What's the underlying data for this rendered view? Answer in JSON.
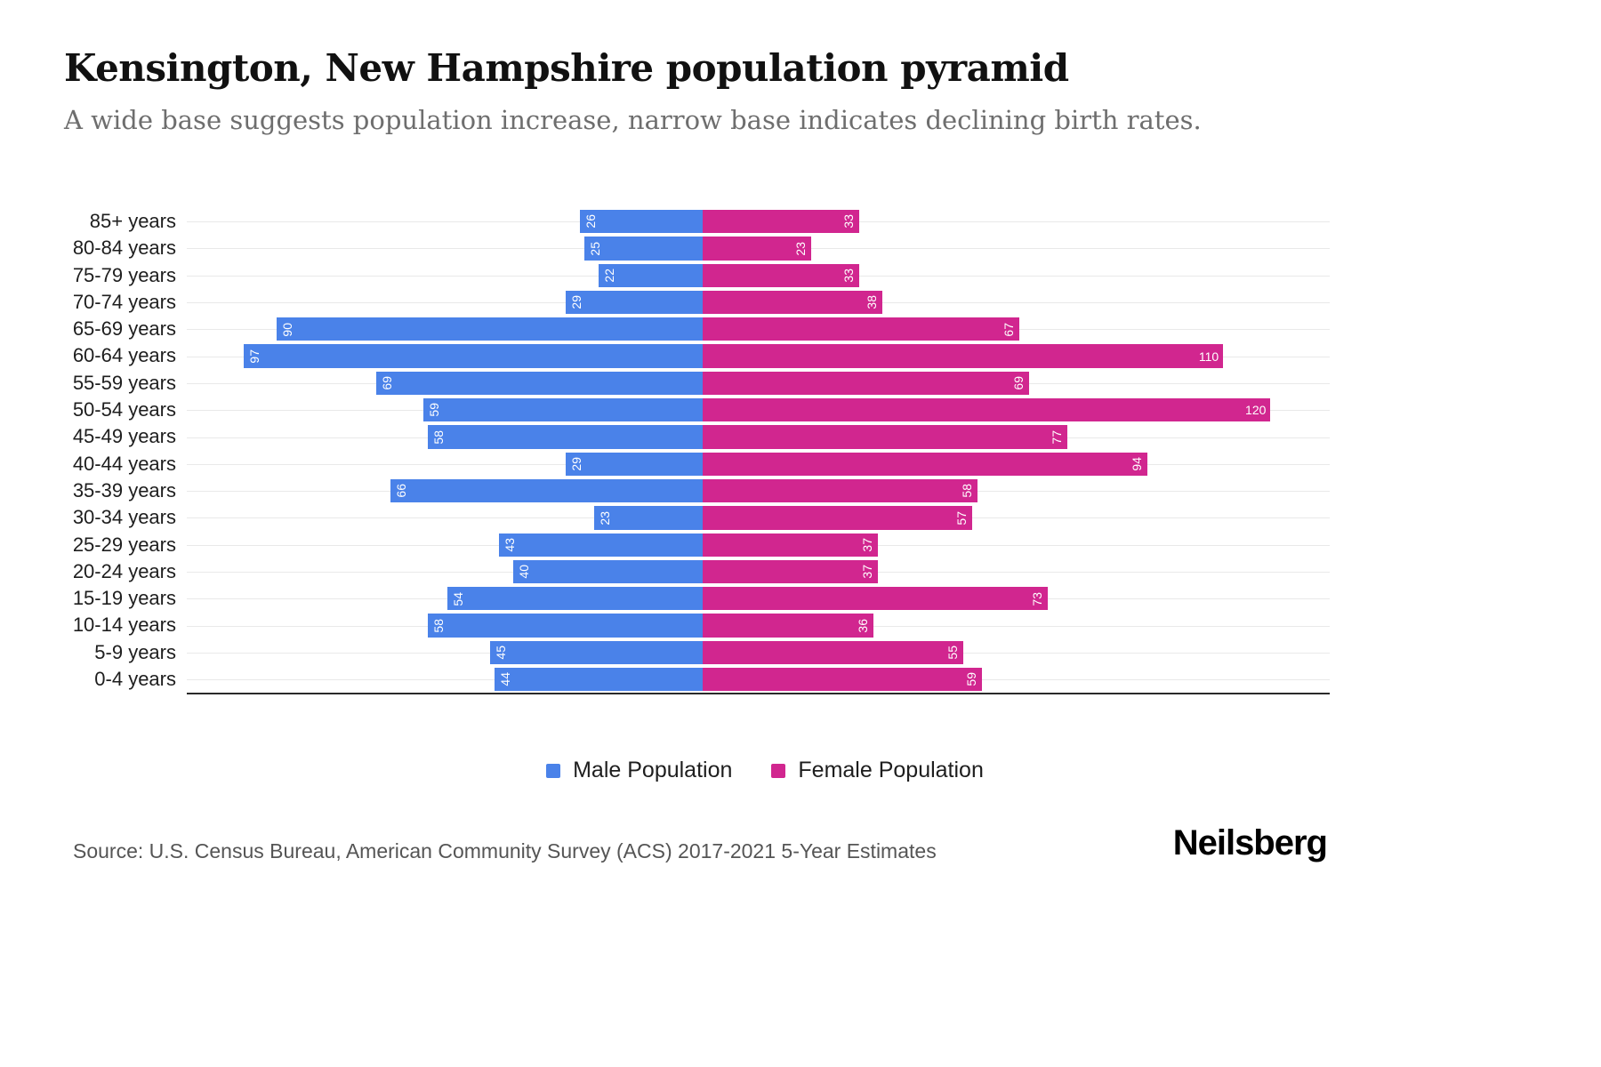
{
  "chart_data": {
    "type": "bar",
    "orientation": "horizontal-pyramid",
    "title": "Kensington, New Hampshire population pyramid",
    "subtitle": "A wide base suggests population increase, narrow base indicates declining birth rates.",
    "categories": [
      "85+ years",
      "80-84 years",
      "75-79 years",
      "70-74 years",
      "65-69 years",
      "60-64 years",
      "55-59 years",
      "50-54 years",
      "45-49 years",
      "40-44 years",
      "35-39 years",
      "30-34 years",
      "25-29 years",
      "20-24 years",
      "15-19 years",
      "10-14 years",
      "5-9 years",
      "0-4 years"
    ],
    "series": [
      {
        "name": "Male Population",
        "color": "#4a82e9",
        "values": [
          26,
          25,
          22,
          29,
          90,
          97,
          69,
          59,
          58,
          29,
          66,
          23,
          43,
          40,
          54,
          58,
          45,
          44
        ]
      },
      {
        "name": "Female Population",
        "color": "#d1268f",
        "values": [
          33,
          23,
          33,
          38,
          67,
          110,
          69,
          120,
          77,
          94,
          58,
          57,
          37,
          37,
          73,
          36,
          55,
          59
        ]
      }
    ],
    "legend_position": "bottom",
    "grid": "horizontal",
    "value_labels": "inside outer end, white, rotated vertical for values under 100",
    "xlim": [
      -110,
      132
    ]
  },
  "footer": {
    "source": "Source: U.S. Census Bureau, American Community Survey (ACS) 2017-2021 5-Year Estimates",
    "brand": "Neilsberg"
  }
}
